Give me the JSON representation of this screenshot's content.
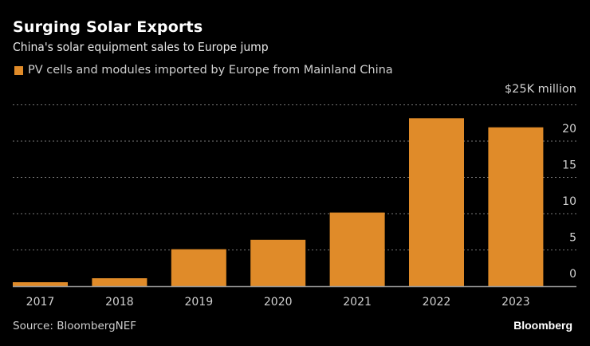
{
  "header": {
    "title": "Surging Solar Exports",
    "subtitle": "China's solar equipment sales to Europe jump"
  },
  "footer": {
    "source": "Source: BloombergNEF",
    "brand": "Bloomberg"
  },
  "colors": {
    "bar": "#E08B29",
    "background": "#000000",
    "gridline": "#777777",
    "baseline": "#999999"
  },
  "chart_data": {
    "type": "bar",
    "title": "Surging Solar Exports",
    "subtitle": "China's solar equipment sales to Europe jump",
    "xlabel": "",
    "ylabel": "$25K million",
    "unit_label": "$25K million",
    "categories": [
      "2017",
      "2018",
      "2019",
      "2020",
      "2021",
      "2022",
      "2023"
    ],
    "series": [
      {
        "name": "PV cells and modules imported by Europe from Mainland China",
        "color": "#E08B29",
        "values": [
          0.55,
          1.1,
          5.1,
          6.4,
          10.15,
          23.15,
          21.9
        ]
      }
    ],
    "ylim": [
      0,
      25
    ],
    "yticks": [
      0,
      5,
      10,
      15,
      20
    ],
    "ytick_labels": [
      "0",
      "5",
      "10",
      "15",
      "20"
    ],
    "grid": true,
    "grid_style": "dotted",
    "yaxis_position": "right",
    "legend_position": "top-left",
    "source": "Source: BloombergNEF"
  }
}
